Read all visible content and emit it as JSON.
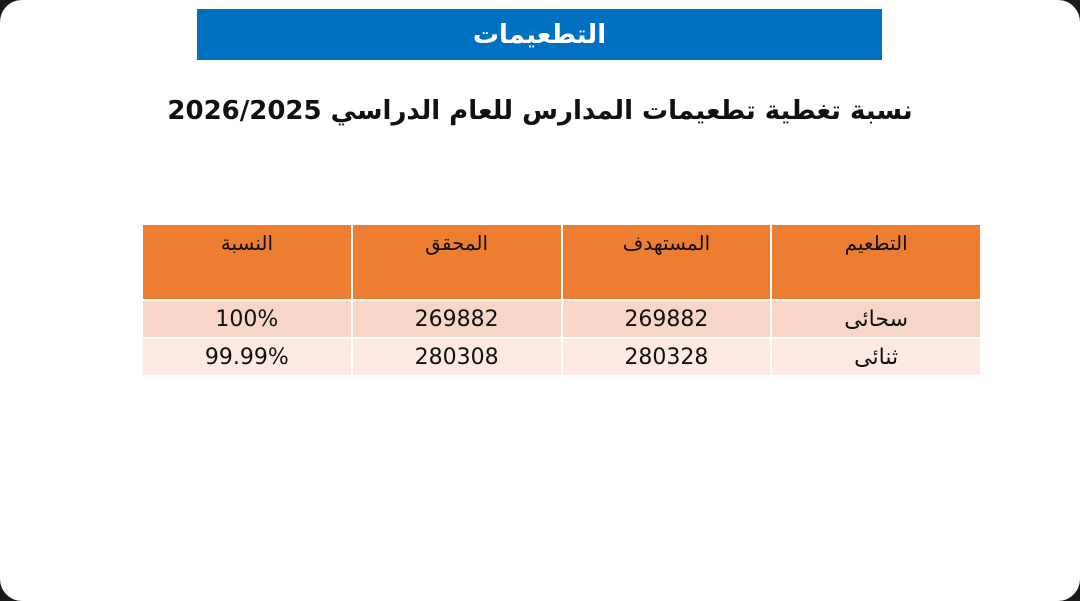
{
  "header": {
    "title": "التطعيمات"
  },
  "subtitle": "نسبة تغطية تطعيمات المدارس للعام الدراسي 2026/2025",
  "table": {
    "columns": [
      "التطعيم",
      "المستهدف",
      "المحقق",
      "النسبة"
    ],
    "rows": [
      [
        "سحائى",
        "269882",
        "269882",
        "100%"
      ],
      [
        "ثنائى",
        "280328",
        "280308",
        "99.99%"
      ]
    ]
  }
}
